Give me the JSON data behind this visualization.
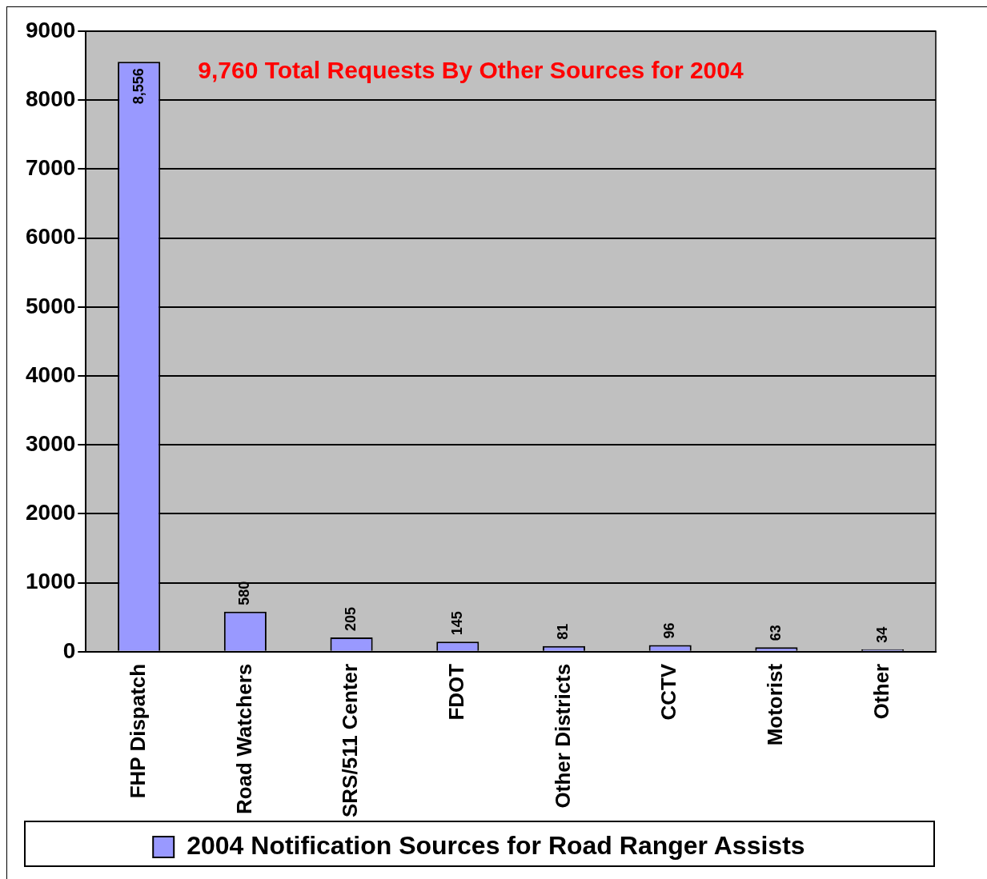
{
  "chart_data": {
    "type": "bar",
    "categories": [
      "FHP Dispatch",
      "Road Watchers",
      "SRS/511 Center",
      "FDOT",
      "Other Districts",
      "CCTV",
      "Motorist",
      "Other"
    ],
    "series": [
      {
        "name": "2004 Notification Sources for Road Ranger Assists",
        "color": "#9999ff",
        "values": [
          8556,
          580,
          205,
          145,
          81,
          96,
          63,
          34
        ],
        "value_labels": [
          "8,556",
          "580",
          "205",
          "145",
          "81",
          "96",
          "63",
          "34"
        ]
      }
    ],
    "ylim": [
      0,
      9000
    ],
    "yticks": [
      0,
      1000,
      2000,
      3000,
      4000,
      5000,
      6000,
      7000,
      8000,
      9000
    ],
    "grid": "y",
    "legend": "bottom",
    "annotations": [
      "9,760 Total Requests By Other Sources for 2004"
    ]
  }
}
